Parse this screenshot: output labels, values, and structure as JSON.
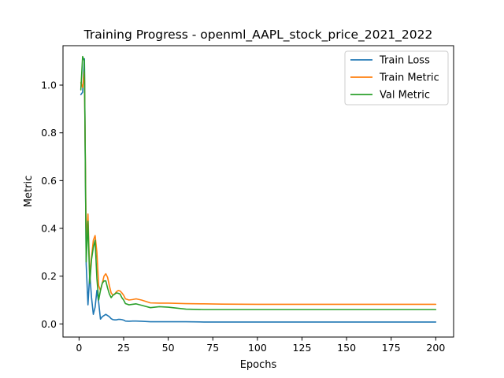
{
  "chart_data": {
    "type": "line",
    "title": "Training Progress - openml_AAPL_stock_price_2021_2022",
    "xlabel": "Epochs",
    "ylabel": "Metric",
    "xlim": [
      -9,
      210
    ],
    "ylim": [
      -0.055,
      1.165
    ],
    "xticks": [
      0,
      25,
      50,
      75,
      100,
      125,
      150,
      175,
      200
    ],
    "yticks": [
      0.0,
      0.2,
      0.4,
      0.6,
      0.8,
      1.0
    ],
    "ytick_labels": [
      "0.0",
      "0.2",
      "0.4",
      "0.6",
      "0.8",
      "1.0"
    ],
    "grid": false,
    "legend_position": "top-right",
    "series": [
      {
        "name": "Train Loss",
        "color": "#1f77b4",
        "x": [
          1,
          2,
          3,
          4,
          5,
          6,
          7,
          8,
          9,
          10,
          11,
          12,
          13,
          14,
          15,
          16,
          17,
          18,
          19,
          20,
          21,
          22,
          23,
          24,
          25,
          26,
          28,
          30,
          32,
          35,
          40,
          45,
          50,
          60,
          70,
          80,
          100,
          125,
          150,
          175,
          200
        ],
        "y": [
          0.96,
          0.97,
          1.11,
          0.25,
          0.08,
          0.21,
          0.11,
          0.04,
          0.07,
          0.14,
          0.09,
          0.02,
          0.03,
          0.035,
          0.04,
          0.035,
          0.03,
          0.022,
          0.018,
          0.017,
          0.017,
          0.019,
          0.019,
          0.018,
          0.016,
          0.012,
          0.011,
          0.012,
          0.012,
          0.011,
          0.009,
          0.009,
          0.009,
          0.009,
          0.008,
          0.008,
          0.008,
          0.008,
          0.008,
          0.008,
          0.008
        ]
      },
      {
        "name": "Train Metric",
        "color": "#ff7f0e",
        "x": [
          1,
          2,
          3,
          4,
          5,
          6,
          7,
          8,
          9,
          10,
          11,
          12,
          13,
          14,
          15,
          16,
          17,
          18,
          19,
          20,
          21,
          22,
          23,
          24,
          25,
          26,
          28,
          30,
          32,
          35,
          40,
          45,
          50,
          60,
          70,
          80,
          100,
          125,
          150,
          175,
          200
        ],
        "y": [
          1.01,
          0.99,
          1.06,
          0.35,
          0.46,
          0.2,
          0.28,
          0.35,
          0.37,
          0.3,
          0.16,
          0.14,
          0.17,
          0.2,
          0.21,
          0.195,
          0.16,
          0.13,
          0.12,
          0.125,
          0.135,
          0.14,
          0.138,
          0.13,
          0.12,
          0.105,
          0.1,
          0.102,
          0.105,
          0.1,
          0.088,
          0.087,
          0.087,
          0.085,
          0.084,
          0.083,
          0.082,
          0.082,
          0.082,
          0.082,
          0.082
        ]
      },
      {
        "name": "Val Metric",
        "color": "#2ca02c",
        "x": [
          1,
          2,
          3,
          4,
          5,
          6,
          7,
          8,
          9,
          10,
          11,
          12,
          13,
          14,
          15,
          16,
          17,
          18,
          19,
          20,
          21,
          22,
          23,
          24,
          25,
          26,
          28,
          30,
          32,
          35,
          40,
          45,
          50,
          60,
          70,
          80,
          100,
          125,
          150,
          175,
          200
        ],
        "y": [
          0.98,
          1.12,
          1.1,
          0.26,
          0.43,
          0.17,
          0.27,
          0.32,
          0.35,
          0.19,
          0.1,
          0.14,
          0.17,
          0.18,
          0.18,
          0.15,
          0.125,
          0.11,
          0.12,
          0.125,
          0.13,
          0.128,
          0.125,
          0.11,
          0.1,
          0.085,
          0.08,
          0.082,
          0.084,
          0.078,
          0.068,
          0.072,
          0.07,
          0.062,
          0.06,
          0.06,
          0.06,
          0.06,
          0.06,
          0.06,
          0.06
        ]
      }
    ]
  }
}
